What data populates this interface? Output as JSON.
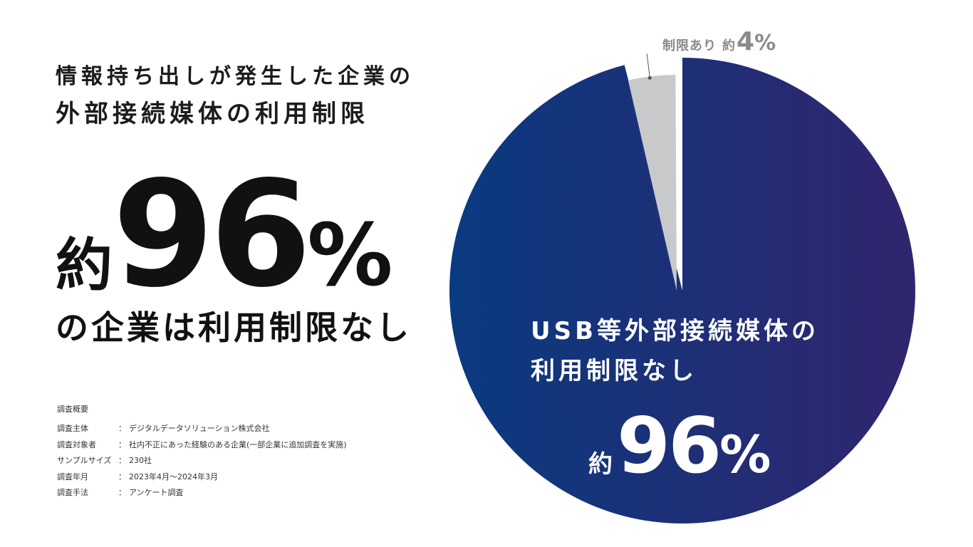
{
  "headline": {
    "line1": "情報持ち出しが発生した企業の",
    "line2": "外部接続媒体の利用制限"
  },
  "big_stat": {
    "prefix": "約",
    "number": "96",
    "unit": "%",
    "caption": "の企業は利用制限なし"
  },
  "survey": {
    "title": "調査概要",
    "rows": [
      {
        "label": "調査主体",
        "colon": "：",
        "value": "デジタルデータソリューション株式会社"
      },
      {
        "label": "調査対象者",
        "colon": "：",
        "value": "社内不正にあった経験のある企業(一部企業に追加調査を実施)"
      },
      {
        "label": "サンプルサイズ",
        "colon": "：",
        "value": "230社"
      },
      {
        "label": "調査年月",
        "colon": "：",
        "value": "2023年4月〜2024年3月"
      },
      {
        "label": "調査手法",
        "colon": "：",
        "value": "アンケート調査"
      }
    ]
  },
  "chart_data": {
    "type": "pie",
    "slices": [
      {
        "label_line1": "USB等外部接続媒体の",
        "label_line2": "利用制限なし",
        "prefix": "約",
        "value": 96,
        "unit": "%",
        "color": "#1e2f7d"
      },
      {
        "label": "制限あり",
        "prefix": "約",
        "value": 4,
        "unit": "%",
        "color": "#c8c9cb"
      }
    ],
    "colors": {
      "main_gradient_start": "#0a3a80",
      "main_gradient_end": "#30256e",
      "minor": "#c8c9cb",
      "label_minor": "#8a8a8a"
    }
  }
}
